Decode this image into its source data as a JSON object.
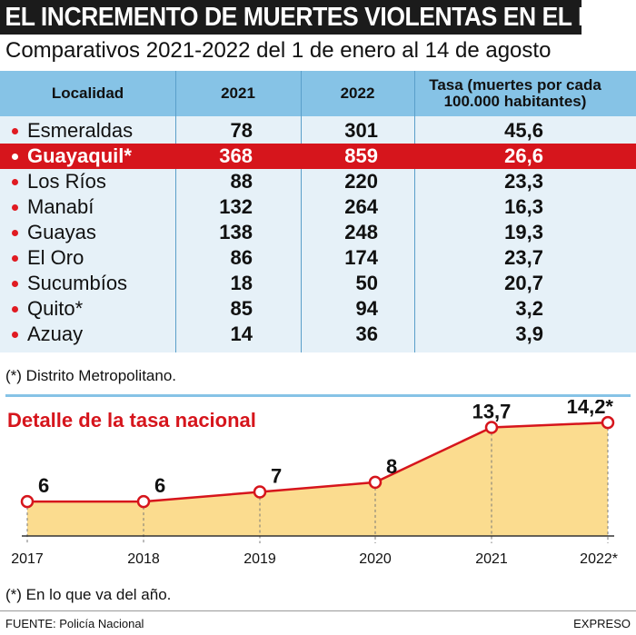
{
  "header": {
    "title": "EL INCREMENTO DE MUERTES VIOLENTAS EN EL PAÍS",
    "subtitle": "Comparativos 2021-2022 del 1 de enero al 14 de agosto"
  },
  "table": {
    "columns": [
      "Localidad",
      "2021",
      "2022",
      "Tasa (muertes por cada 100.000 habitantes)"
    ],
    "rows": [
      {
        "localidad": "Esmeraldas",
        "y2021": "78",
        "y2022": "301",
        "tasa": "45,6"
      },
      {
        "localidad": "Guayaquil*",
        "y2021": "368",
        "y2022": "859",
        "tasa": "26,6",
        "highlight": true
      },
      {
        "localidad": "Los Ríos",
        "y2021": "88",
        "y2022": "220",
        "tasa": "23,3"
      },
      {
        "localidad": "Manabí",
        "y2021": "132",
        "y2022": "264",
        "tasa": "16,3"
      },
      {
        "localidad": "Guayas",
        "y2021": "138",
        "y2022": "248",
        "tasa": "19,3"
      },
      {
        "localidad": "El Oro",
        "y2021": "86",
        "y2022": "174",
        "tasa": "23,7"
      },
      {
        "localidad": "Sucumbíos",
        "y2021": "18",
        "y2022": "50",
        "tasa": "20,7"
      },
      {
        "localidad": "Quito*",
        "y2021": "85",
        "y2022": "94",
        "tasa": "3,2"
      },
      {
        "localidad": "Azuay",
        "y2021": "14",
        "y2022": "36",
        "tasa": "3,9"
      }
    ],
    "footnote": "(*) Distrito Metropolitano."
  },
  "chart_data": {
    "type": "area",
    "title": "Detalle de la tasa nacional",
    "categories": [
      "2017",
      "2018",
      "2019",
      "2020",
      "2021",
      "2022*"
    ],
    "values": [
      6,
      6,
      7,
      8,
      13.7,
      14.2
    ],
    "value_labels": [
      "6",
      "6",
      "7",
      "8",
      "13,7",
      "14,2*"
    ],
    "xlabel": "",
    "ylabel": "",
    "ylim": [
      0,
      16
    ],
    "fill_color": "#fbdc8f",
    "line_color": "#d6151c",
    "footnote": "(*) En lo que va del año."
  },
  "footer": {
    "source": "FUENTE: Policía Nacional",
    "brand": "EXPRESO"
  },
  "colors": {
    "accent_red": "#d6151c",
    "header_blue": "#86c3e6",
    "table_bg": "#e6f1f8",
    "title_bg": "#1b1b1b"
  }
}
